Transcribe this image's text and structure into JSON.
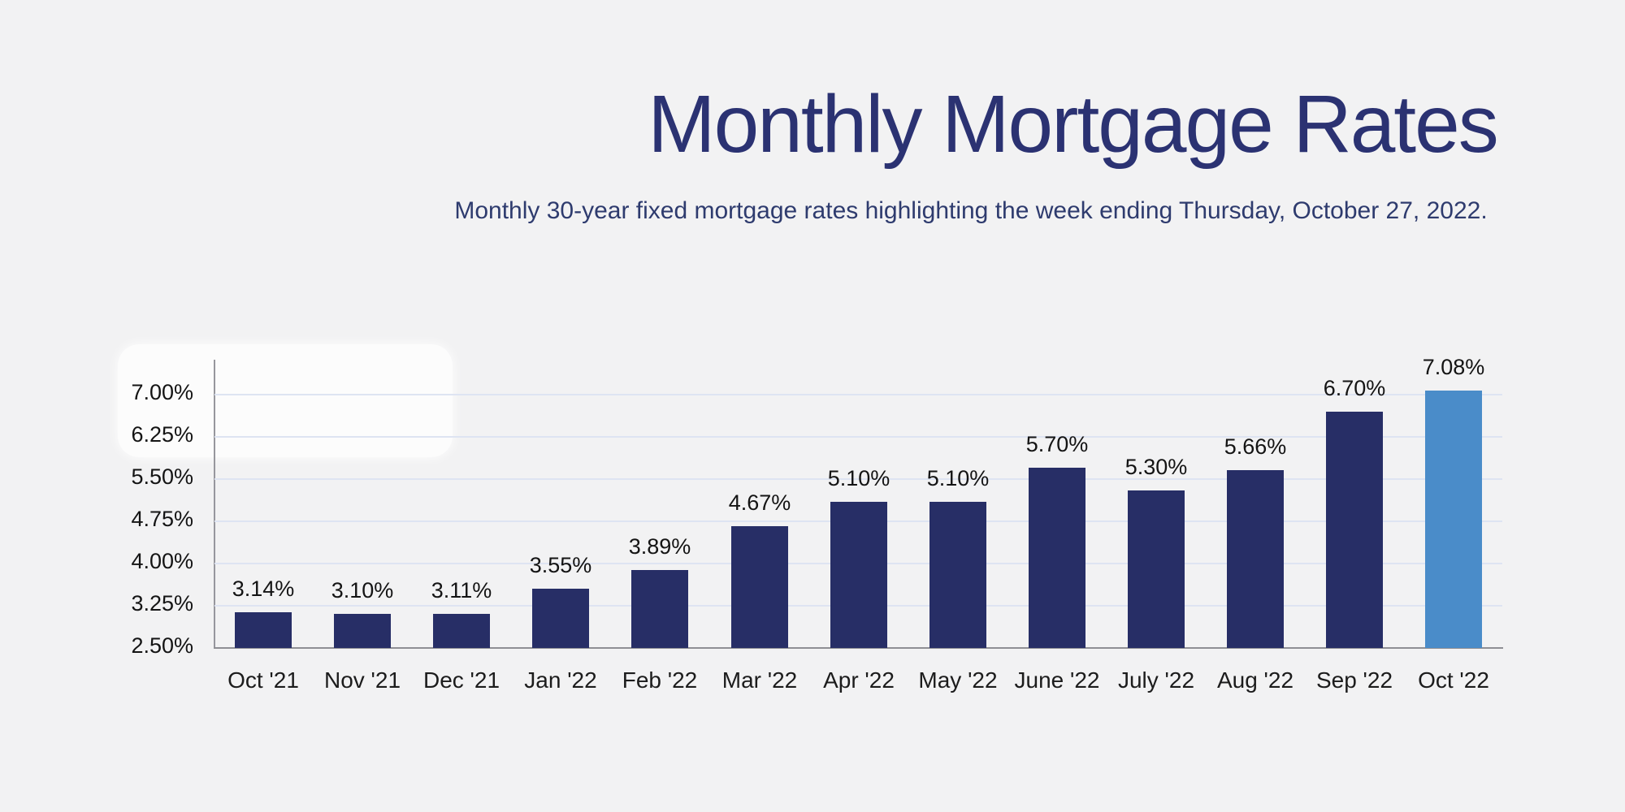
{
  "page": {
    "background_color": "#f2f2f3"
  },
  "header": {
    "title": "Monthly Mortgage Rates",
    "subtitle": "Monthly 30-year fixed mortgage rates highlighting the week ending Thursday, October 27, 2022."
  },
  "chart_data": {
    "type": "bar",
    "title": "Monthly Mortgage Rates",
    "subtitle": "Monthly 30-year fixed mortgage rates highlighting the week ending Thursday, October 27, 2022.",
    "categories": [
      "Oct '21",
      "Nov '21",
      "Dec '21",
      "Jan '22",
      "Feb '22",
      "Mar '22",
      "Apr '22",
      "May '22",
      "June '22",
      "July '22",
      "Aug '22",
      "Sep '22",
      "Oct '22"
    ],
    "values": [
      3.14,
      3.1,
      3.11,
      3.55,
      3.89,
      4.67,
      5.1,
      5.1,
      5.7,
      5.3,
      5.66,
      6.7,
      7.08
    ],
    "value_labels": [
      "3.14%",
      "3.10%",
      "3.11%",
      "3.55%",
      "3.89%",
      "4.67%",
      "5.10%",
      "5.10%",
      "5.70%",
      "5.30%",
      "5.66%",
      "6.70%",
      "7.08%"
    ],
    "highlight_index": 12,
    "highlight_category": "Oct '22",
    "xlabel": "",
    "ylabel": "",
    "ylim": [
      2.5,
      7.4
    ],
    "y_ticks": {
      "labels": [
        "7.00%",
        "6.25%",
        "5.50%",
        "4.75%",
        "4.00%",
        "3.25%",
        "2.50%"
      ],
      "values": [
        7.0,
        6.25,
        5.5,
        4.75,
        4.0,
        3.25,
        2.5
      ]
    },
    "grid": "horizontal",
    "legend": "none",
    "colors": {
      "bar": "#272e66",
      "highlight_bar": "#4a8cc9",
      "gridline": "#dee4f2",
      "axis": "#8f8f94",
      "tick_label": "#141414",
      "title": "#2b3272",
      "subtitle": "#2e3b6e"
    }
  }
}
